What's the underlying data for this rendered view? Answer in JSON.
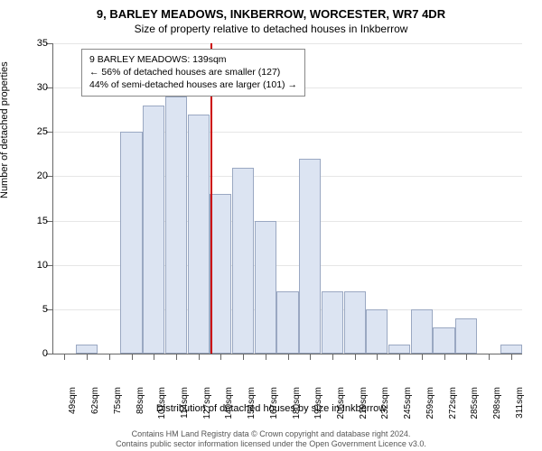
{
  "titles": {
    "main": "9, BARLEY MEADOWS, INKBERROW, WORCESTER, WR7 4DR",
    "sub": "Size of property relative to detached houses in Inkberrow",
    "yaxis": "Number of detached properties",
    "xaxis": "Distribution of detached houses by size in Inkberrow"
  },
  "legend": {
    "line1": "9 BARLEY MEADOWS: 139sqm",
    "line2": "← 56% of detached houses are smaller (127)",
    "line3": "44% of semi-detached houses are larger (101) →"
  },
  "footer": {
    "line1": "Contains HM Land Registry data © Crown copyright and database right 2024.",
    "line2": "Contains public sector information licensed under the Open Government Licence v3.0."
  },
  "chart": {
    "type": "histogram",
    "ymax": 35,
    "ytick_step": 5,
    "yticks": [
      0,
      5,
      10,
      15,
      20,
      25,
      30,
      35
    ],
    "xticklabels": [
      "49sqm",
      "62sqm",
      "75sqm",
      "88sqm",
      "101sqm",
      "114sqm",
      "127sqm",
      "140sqm",
      "154sqm",
      "167sqm",
      "180sqm",
      "193sqm",
      "206sqm",
      "219sqm",
      "232sqm",
      "245sqm",
      "259sqm",
      "272sqm",
      "285sqm",
      "298sqm",
      "311sqm"
    ],
    "values": [
      0,
      1,
      0,
      25,
      28,
      29,
      27,
      18,
      21,
      15,
      7,
      22,
      7,
      7,
      5,
      1,
      5,
      3,
      4,
      0,
      1
    ],
    "bar_color": "#dce4f2",
    "bar_border_color": "#9aa8c2",
    "grid_color": "#e6e6e6",
    "background_color": "#ffffff",
    "axis_color": "#666666",
    "reference_line_index": 7,
    "reference_line_color": "#cc0000",
    "fontsize_ticks": 11,
    "fontsize_title": 13,
    "fontsize_sub": 12
  }
}
